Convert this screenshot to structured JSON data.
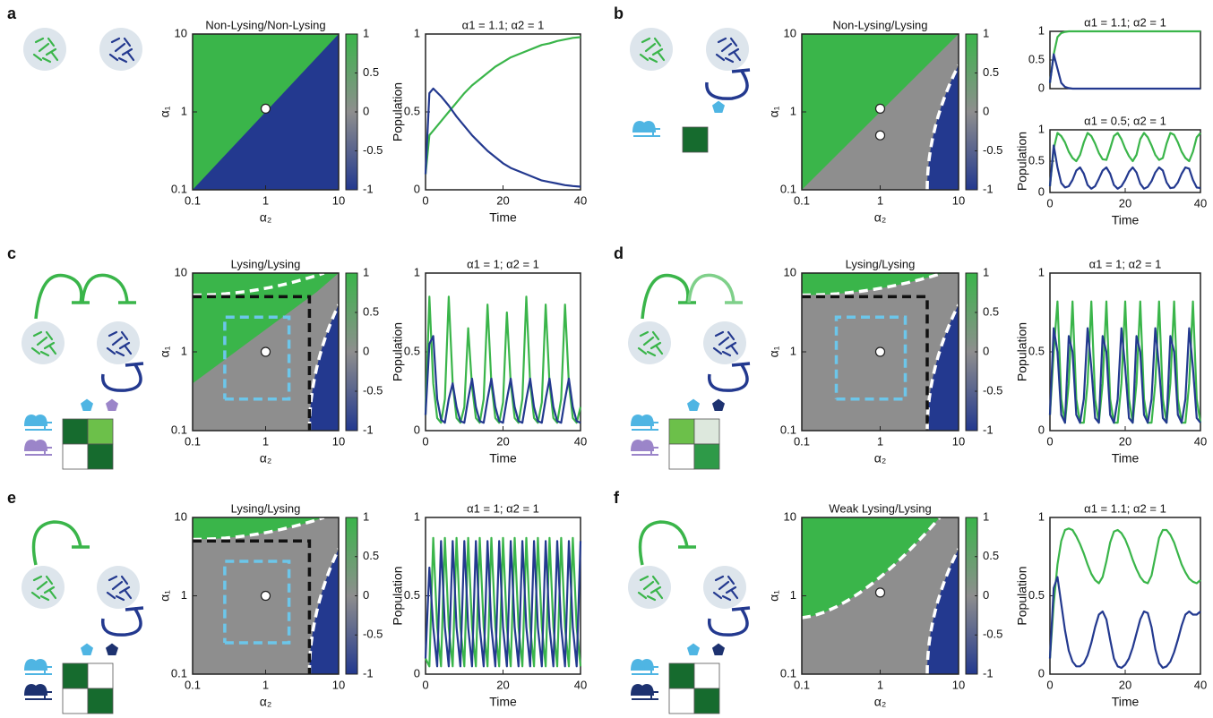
{
  "chart_data": [
    {
      "type": "heatmap",
      "panel": "a",
      "title": "Non-Lysing/Non-Lysing",
      "xlabel": "α₂",
      "ylabel": "α₁",
      "log_scale": true,
      "xlim": [
        0.1,
        10
      ],
      "ylim": [
        0.1,
        10
      ],
      "xticks": [
        0.1,
        1,
        10
      ],
      "yticks": [
        0.1,
        1,
        10
      ],
      "colorbar": {
        "clim": [
          -1,
          1
        ],
        "ticks": [
          1,
          0.5,
          0,
          -0.5,
          -1
        ],
        "colors": [
          "#23398f",
          "#8e8e8e",
          "#3ab54a"
        ]
      },
      "points": {
        "x": [
          1
        ],
        "y": [
          1.1
        ]
      }
    },
    {
      "type": "line",
      "title": "α1 = 1.1; α2 = 1",
      "xlabel": "Time",
      "ylabel": "Population",
      "xlim": [
        0,
        40
      ],
      "ylim": [
        0,
        1
      ],
      "xticks": [
        0,
        20,
        40
      ],
      "yticks": [
        0,
        0.5,
        1
      ],
      "x": [
        0,
        1,
        2,
        4,
        6,
        8,
        10,
        12,
        14,
        16,
        18,
        20,
        22,
        24,
        26,
        28,
        30,
        32,
        34,
        36,
        38,
        40
      ],
      "series": [
        {
          "color": "#3ab54a",
          "values": [
            0.1,
            0.35,
            0.38,
            0.44,
            0.5,
            0.56,
            0.62,
            0.67,
            0.71,
            0.75,
            0.79,
            0.82,
            0.85,
            0.87,
            0.89,
            0.91,
            0.93,
            0.94,
            0.955,
            0.965,
            0.975,
            0.98
          ]
        },
        {
          "color": "#23398f",
          "values": [
            0.1,
            0.62,
            0.65,
            0.6,
            0.54,
            0.47,
            0.41,
            0.35,
            0.3,
            0.25,
            0.21,
            0.17,
            0.14,
            0.12,
            0.1,
            0.08,
            0.06,
            0.05,
            0.04,
            0.03,
            0.024,
            0.02
          ]
        }
      ]
    },
    {
      "type": "heatmap",
      "panel": "b",
      "title": "Non-Lysing/Lysing",
      "xlabel": "α₂",
      "ylabel": "α₁",
      "log_scale": true,
      "xlim": [
        0.1,
        10
      ],
      "ylim": [
        0.1,
        10
      ],
      "xticks": [
        0.1,
        1,
        10
      ],
      "yticks": [
        0.1,
        1,
        10
      ],
      "colorbar": {
        "clim": [
          -1,
          1
        ],
        "ticks": [
          1,
          0.5,
          0,
          -0.5,
          -1
        ],
        "colors": [
          "#23398f",
          "#8e8e8e",
          "#3ab54a"
        ]
      },
      "points": {
        "x": [
          1,
          1
        ],
        "y": [
          1.1,
          0.5
        ]
      }
    },
    {
      "type": "line",
      "title": "α1 = 1.1; α2 = 1",
      "xlim": [
        0,
        40
      ],
      "ylim": [
        0,
        1
      ],
      "yticks": [
        0,
        0.5,
        1
      ],
      "x": [
        0,
        1,
        2,
        3,
        4,
        5,
        6,
        8,
        10,
        15,
        20,
        25,
        30,
        35,
        40
      ],
      "series": [
        {
          "color": "#3ab54a",
          "values": [
            0.1,
            0.6,
            0.9,
            0.97,
            0.99,
            1,
            1,
            1,
            1,
            1,
            1,
            1,
            1,
            1,
            1
          ]
        },
        {
          "color": "#23398f",
          "values": [
            0.1,
            0.6,
            0.35,
            0.1,
            0.03,
            0.01,
            0,
            0,
            0,
            0,
            0,
            0,
            0,
            0,
            0
          ]
        }
      ]
    },
    {
      "type": "line",
      "title": "α1 = 0.5; α2 = 1",
      "xlabel": "Time",
      "ylabel": "Population",
      "xlim": [
        0,
        40
      ],
      "ylim": [
        0,
        1
      ],
      "xticks": [
        0,
        20,
        40
      ],
      "yticks": [
        0,
        0.5,
        1
      ],
      "x": [
        0,
        1,
        2,
        3,
        4,
        5,
        6,
        7,
        8,
        9,
        10,
        11,
        12,
        13,
        14,
        15,
        16,
        17,
        18,
        19,
        20,
        21,
        22,
        23,
        24,
        25,
        26,
        27,
        28,
        29,
        30,
        31,
        32,
        33,
        34,
        35,
        36,
        37,
        38,
        39,
        40
      ],
      "series": [
        {
          "color": "#3ab54a",
          "values": [
            0.1,
            0.7,
            0.95,
            0.9,
            0.8,
            0.65,
            0.55,
            0.5,
            0.6,
            0.8,
            0.95,
            0.9,
            0.78,
            0.63,
            0.53,
            0.52,
            0.7,
            0.9,
            0.95,
            0.85,
            0.7,
            0.58,
            0.5,
            0.6,
            0.85,
            0.95,
            0.88,
            0.75,
            0.6,
            0.52,
            0.55,
            0.78,
            0.95,
            0.92,
            0.8,
            0.65,
            0.55,
            0.5,
            0.65,
            0.88,
            0.95
          ]
        },
        {
          "color": "#23398f",
          "values": [
            0.1,
            0.75,
            0.4,
            0.15,
            0.08,
            0.1,
            0.2,
            0.35,
            0.4,
            0.3,
            0.12,
            0.06,
            0.1,
            0.22,
            0.35,
            0.4,
            0.3,
            0.12,
            0.06,
            0.1,
            0.2,
            0.33,
            0.4,
            0.32,
            0.14,
            0.06,
            0.09,
            0.18,
            0.32,
            0.4,
            0.35,
            0.16,
            0.07,
            0.08,
            0.16,
            0.3,
            0.4,
            0.38,
            0.2,
            0.08,
            0.07
          ]
        }
      ]
    },
    {
      "type": "heatmap",
      "panel": "c",
      "title": "Lysing/Lysing",
      "xlabel": "α₂",
      "ylabel": "α₁",
      "log_scale": true,
      "xlim": [
        0.1,
        10
      ],
      "ylim": [
        0.1,
        10
      ],
      "xticks": [
        0.1,
        1,
        10
      ],
      "yticks": [
        0.1,
        1,
        10
      ],
      "colorbar": {
        "clim": [
          -1,
          1
        ],
        "ticks": [
          1,
          0.5,
          0,
          -0.5,
          -1
        ],
        "colors": [
          "#23398f",
          "#8e8e8e",
          "#3ab54a"
        ]
      },
      "points": {
        "x": [
          1
        ],
        "y": [
          1
        ]
      }
    },
    {
      "type": "line",
      "title": "α1 = 1; α2 = 1",
      "xlabel": "Time",
      "ylabel": "Population",
      "xlim": [
        0,
        40
      ],
      "ylim": [
        0,
        1
      ],
      "xticks": [
        0,
        20,
        40
      ],
      "yticks": [
        0,
        0.5,
        1
      ],
      "x": [
        0,
        1,
        2,
        3,
        4,
        5,
        6,
        7,
        8,
        9,
        10,
        11,
        12,
        13,
        14,
        15,
        16,
        17,
        18,
        19,
        20,
        21,
        22,
        23,
        24,
        25,
        26,
        27,
        28,
        29,
        30,
        31,
        32,
        33,
        34,
        35,
        36,
        37,
        38,
        39,
        40
      ],
      "series": [
        {
          "color": "#3ab54a",
          "values": [
            0.1,
            0.85,
            0.3,
            0.08,
            0.05,
            0.2,
            0.85,
            0.3,
            0.08,
            0.05,
            0.15,
            0.65,
            0.28,
            0.08,
            0.05,
            0.2,
            0.8,
            0.3,
            0.08,
            0.05,
            0.18,
            0.75,
            0.3,
            0.08,
            0.05,
            0.2,
            0.85,
            0.3,
            0.08,
            0.05,
            0.18,
            0.8,
            0.3,
            0.08,
            0.05,
            0.2,
            0.8,
            0.3,
            0.08,
            0.05,
            0.15
          ]
        },
        {
          "color": "#23398f",
          "values": [
            0.1,
            0.55,
            0.6,
            0.2,
            0.07,
            0.05,
            0.2,
            0.3,
            0.15,
            0.06,
            0.05,
            0.2,
            0.33,
            0.15,
            0.06,
            0.05,
            0.2,
            0.33,
            0.15,
            0.06,
            0.05,
            0.2,
            0.33,
            0.15,
            0.06,
            0.05,
            0.2,
            0.33,
            0.15,
            0.06,
            0.05,
            0.2,
            0.33,
            0.15,
            0.06,
            0.05,
            0.2,
            0.33,
            0.15,
            0.06,
            0.05
          ]
        }
      ]
    },
    {
      "type": "heatmap",
      "panel": "d",
      "title": "Lysing/Lysing",
      "xlabel": "α₂",
      "ylabel": "α₁",
      "log_scale": true,
      "xlim": [
        0.1,
        10
      ],
      "ylim": [
        0.1,
        10
      ],
      "xticks": [
        0.1,
        1,
        10
      ],
      "yticks": [
        0.1,
        1,
        10
      ],
      "colorbar": {
        "clim": [
          -1,
          1
        ],
        "ticks": [
          1,
          0.5,
          0,
          -0.5,
          -1
        ],
        "colors": [
          "#23398f",
          "#8e8e8e",
          "#3ab54a"
        ]
      },
      "points": {
        "x": [
          1
        ],
        "y": [
          1
        ]
      }
    },
    {
      "type": "line",
      "title": "α1 = 1; α2 = 1",
      "xlabel": "Time",
      "ylabel": "Population",
      "xlim": [
        0,
        40
      ],
      "ylim": [
        0,
        1
      ],
      "xticks": [
        0,
        20,
        40
      ],
      "yticks": [
        0,
        0.5,
        1
      ],
      "x": [
        0,
        1,
        2,
        3,
        4,
        5,
        6,
        7,
        8,
        9,
        10,
        11,
        12,
        13,
        14,
        15,
        16,
        17,
        18,
        19,
        20,
        21,
        22,
        23,
        24,
        25,
        26,
        27,
        28,
        29,
        30,
        31,
        32,
        33,
        34,
        35,
        36,
        37,
        38,
        39,
        40
      ],
      "series": [
        {
          "color": "#3ab54a",
          "values": [
            0.1,
            0.5,
            0.82,
            0.2,
            0.05,
            0.3,
            0.82,
            0.2,
            0.05,
            0.05,
            0.3,
            0.82,
            0.2,
            0.05,
            0.3,
            0.82,
            0.2,
            0.05,
            0.05,
            0.3,
            0.82,
            0.2,
            0.05,
            0.3,
            0.82,
            0.2,
            0.05,
            0.05,
            0.3,
            0.82,
            0.2,
            0.05,
            0.3,
            0.82,
            0.2,
            0.05,
            0.05,
            0.3,
            0.82,
            0.2,
            0.05
          ]
        },
        {
          "color": "#23398f",
          "values": [
            0.1,
            0.65,
            0.5,
            0.1,
            0.05,
            0.6,
            0.5,
            0.1,
            0.05,
            0.2,
            0.65,
            0.4,
            0.08,
            0.05,
            0.6,
            0.5,
            0.1,
            0.05,
            0.2,
            0.65,
            0.4,
            0.08,
            0.05,
            0.6,
            0.5,
            0.1,
            0.05,
            0.2,
            0.65,
            0.4,
            0.08,
            0.05,
            0.6,
            0.5,
            0.1,
            0.05,
            0.2,
            0.65,
            0.4,
            0.08,
            0.05
          ]
        }
      ]
    },
    {
      "type": "heatmap",
      "panel": "e",
      "title": "Lysing/Lysing",
      "xlabel": "α₂",
      "ylabel": "α₁",
      "log_scale": true,
      "xlim": [
        0.1,
        10
      ],
      "ylim": [
        0.1,
        10
      ],
      "xticks": [
        0.1,
        1,
        10
      ],
      "yticks": [
        0.1,
        1,
        10
      ],
      "colorbar": {
        "clim": [
          -1,
          1
        ],
        "ticks": [
          1,
          0.5,
          0,
          -0.5,
          -1
        ],
        "colors": [
          "#23398f",
          "#8e8e8e",
          "#3ab54a"
        ]
      },
      "points": {
        "x": [
          1
        ],
        "y": [
          1
        ]
      }
    },
    {
      "type": "line",
      "title": "α1 = 1; α2 = 1",
      "xlabel": "Time",
      "ylabel": "Population",
      "xlim": [
        0,
        40
      ],
      "ylim": [
        0,
        1
      ],
      "xticks": [
        0,
        20,
        40
      ],
      "yticks": [
        0,
        0.5,
        1
      ],
      "x": [
        0,
        1,
        2,
        3,
        4,
        5,
        6,
        7,
        8,
        9,
        10,
        11,
        12,
        13,
        14,
        15,
        16,
        17,
        18,
        19,
        20,
        21,
        22,
        23,
        24,
        25,
        26,
        27,
        28,
        29,
        30,
        31,
        32,
        33,
        34,
        35,
        36,
        37,
        38,
        39,
        40
      ],
      "series": [
        {
          "color": "#3ab54a",
          "values": [
            0.1,
            0.05,
            0.87,
            0.3,
            0.05,
            0.87,
            0.3,
            0.05,
            0.87,
            0.3,
            0.05,
            0.87,
            0.3,
            0.05,
            0.87,
            0.3,
            0.05,
            0.87,
            0.3,
            0.05,
            0.87,
            0.3,
            0.05,
            0.87,
            0.3,
            0.05,
            0.87,
            0.3,
            0.05,
            0.87,
            0.3,
            0.05,
            0.87,
            0.3,
            0.05,
            0.87,
            0.3,
            0.05,
            0.87,
            0.3,
            0.05
          ]
        },
        {
          "color": "#23398f",
          "values": [
            0.1,
            0.68,
            0.3,
            0.05,
            0.85,
            0.3,
            0.05,
            0.85,
            0.3,
            0.05,
            0.85,
            0.3,
            0.05,
            0.85,
            0.3,
            0.05,
            0.85,
            0.3,
            0.05,
            0.85,
            0.3,
            0.05,
            0.85,
            0.3,
            0.05,
            0.85,
            0.3,
            0.05,
            0.85,
            0.3,
            0.05,
            0.85,
            0.3,
            0.05,
            0.85,
            0.3,
            0.05,
            0.85,
            0.3,
            0.05,
            0.85
          ]
        }
      ]
    },
    {
      "type": "heatmap",
      "panel": "f",
      "title": "Weak Lysing/Lysing",
      "xlabel": "α₂",
      "ylabel": "α₁",
      "log_scale": true,
      "xlim": [
        0.1,
        10
      ],
      "ylim": [
        0.1,
        10
      ],
      "xticks": [
        0.1,
        1,
        10
      ],
      "yticks": [
        0.1,
        1,
        10
      ],
      "colorbar": {
        "clim": [
          -1,
          1
        ],
        "ticks": [
          1,
          0.5,
          0,
          -0.5,
          -1
        ],
        "colors": [
          "#23398f",
          "#8e8e8e",
          "#3ab54a"
        ]
      },
      "points": {
        "x": [
          1
        ],
        "y": [
          1.1
        ]
      }
    },
    {
      "type": "line",
      "title": "α1 = 1.1; α2 = 1",
      "xlabel": "Time",
      "ylabel": "Population",
      "xlim": [
        0,
        40
      ],
      "ylim": [
        0,
        1
      ],
      "xticks": [
        0,
        20,
        40
      ],
      "yticks": [
        0,
        0.5,
        1
      ],
      "x": [
        0,
        1,
        2,
        3,
        4,
        5,
        6,
        7,
        8,
        9,
        10,
        11,
        12,
        13,
        14,
        15,
        16,
        17,
        18,
        19,
        20,
        21,
        22,
        23,
        24,
        25,
        26,
        27,
        28,
        29,
        30,
        31,
        32,
        33,
        34,
        35,
        36,
        37,
        38,
        39,
        40
      ],
      "series": [
        {
          "color": "#3ab54a",
          "values": [
            0.1,
            0.45,
            0.7,
            0.85,
            0.92,
            0.93,
            0.92,
            0.88,
            0.83,
            0.77,
            0.7,
            0.64,
            0.6,
            0.58,
            0.62,
            0.72,
            0.84,
            0.91,
            0.92,
            0.9,
            0.86,
            0.8,
            0.73,
            0.67,
            0.62,
            0.59,
            0.58,
            0.63,
            0.75,
            0.87,
            0.92,
            0.92,
            0.89,
            0.84,
            0.77,
            0.7,
            0.65,
            0.61,
            0.59,
            0.58,
            0.6
          ]
        },
        {
          "color": "#23398f",
          "values": [
            0.1,
            0.55,
            0.62,
            0.45,
            0.28,
            0.15,
            0.08,
            0.05,
            0.05,
            0.07,
            0.12,
            0.2,
            0.3,
            0.38,
            0.4,
            0.35,
            0.22,
            0.1,
            0.05,
            0.04,
            0.06,
            0.1,
            0.17,
            0.26,
            0.35,
            0.4,
            0.39,
            0.3,
            0.16,
            0.07,
            0.04,
            0.05,
            0.08,
            0.14,
            0.22,
            0.31,
            0.38,
            0.4,
            0.38,
            0.38,
            0.4
          ]
        }
      ]
    }
  ]
}
